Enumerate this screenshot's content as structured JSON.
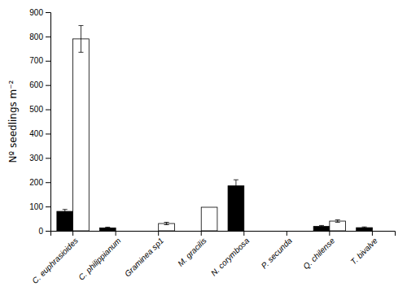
{
  "chart_data": {
    "type": "bar",
    "categories": [
      "C. euphrasioides",
      "C. philippianum",
      "Graminea sp1",
      "M. gracilis",
      "N. corymbosa",
      "P. secunda",
      "Q. chilense",
      "T. bivalve"
    ],
    "series": [
      {
        "color": "#000000",
        "values": [
          80,
          12,
          0,
          0,
          185,
          0,
          18,
          13
        ],
        "errors": [
          8,
          3,
          0,
          0,
          25,
          0,
          4,
          3
        ]
      },
      {
        "color": "#ffffff",
        "values": [
          790,
          0,
          30,
          97,
          0,
          0,
          40,
          0
        ],
        "errors": [
          55,
          0,
          5,
          0,
          0,
          0,
          5,
          0
        ]
      }
    ],
    "ylabel": "Nº seedlings m⁻²",
    "ylim": [
      0,
      900
    ],
    "yticks": [
      0,
      100,
      200,
      300,
      400,
      500,
      600,
      700,
      800,
      900
    ],
    "grid": false
  }
}
